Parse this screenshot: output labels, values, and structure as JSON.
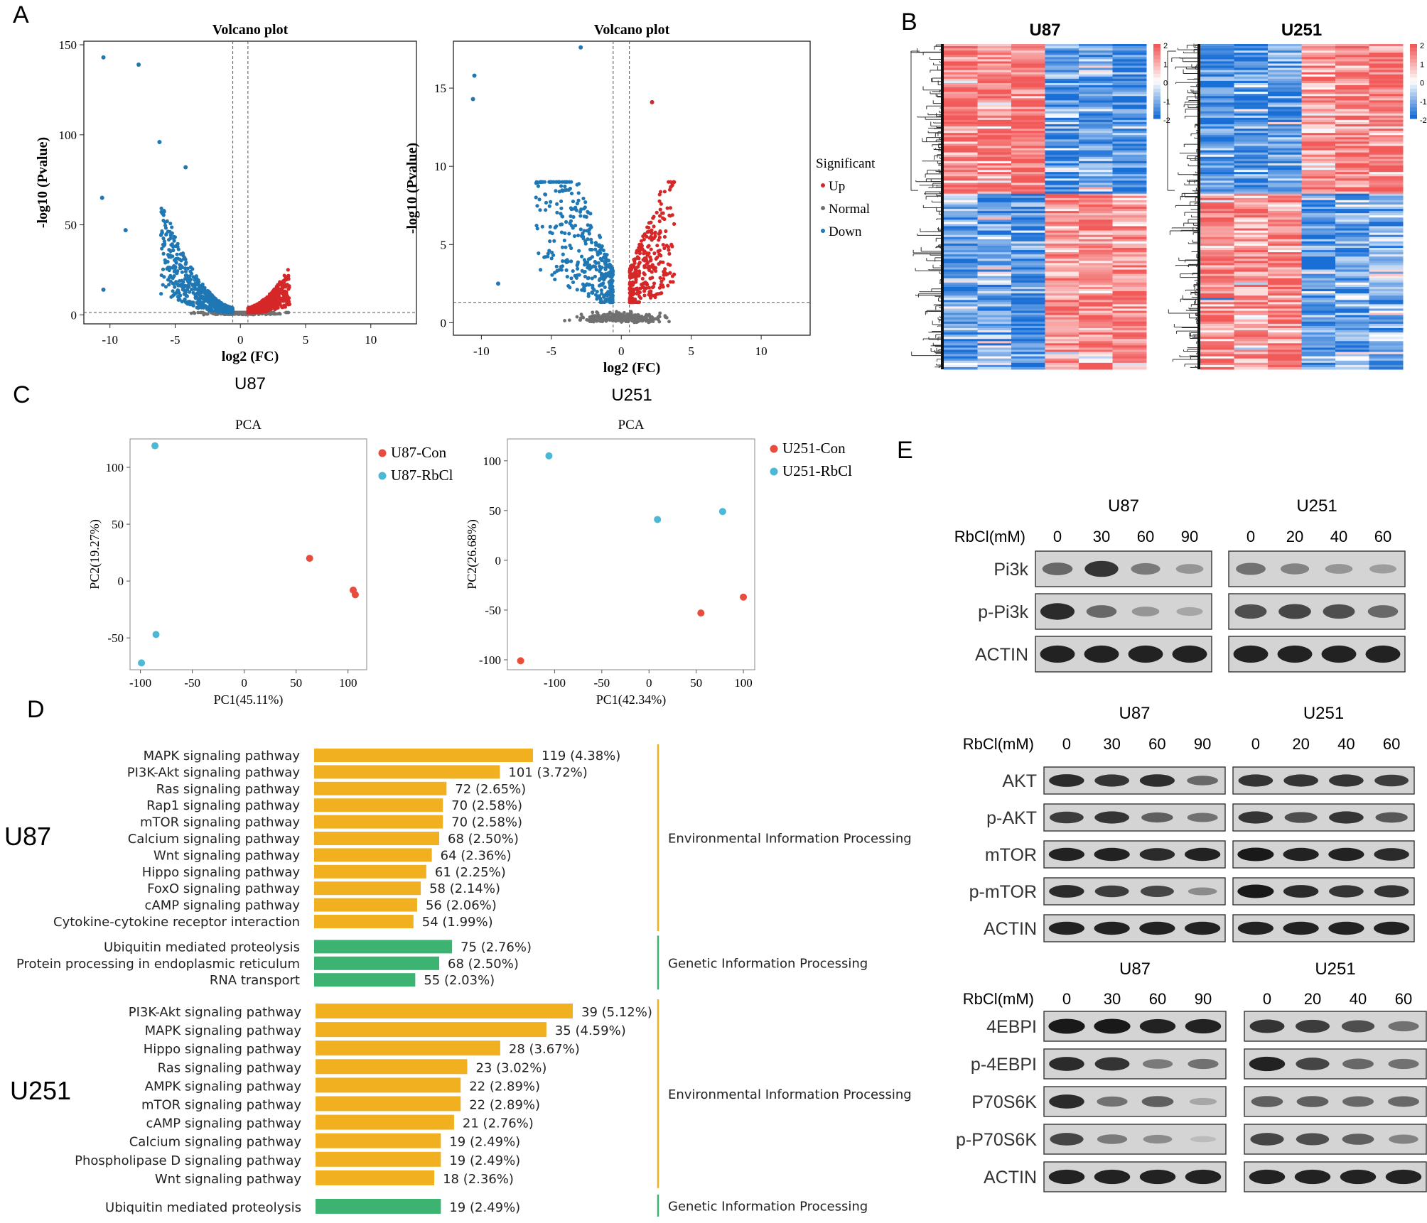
{
  "figure": {
    "panel_labels": [
      "A",
      "B",
      "C",
      "D",
      "E"
    ],
    "colors": {
      "up": "#d62728",
      "down": "#1f77b4",
      "normal": "#707070",
      "con": "#e74c3c",
      "rbcl": "#4bb8d6",
      "env": "#f0b020",
      "gen": "#3cb371",
      "heat_hi": "#f25a5a",
      "heat_lo": "#1a6fd6"
    }
  },
  "chart_data": [
    {
      "type": "scatter",
      "id": "volcano-u87",
      "title": "Volcano plot",
      "xlabel": "log2 (FC)",
      "ylabel": "-log10 (Pvalue)",
      "caption": "U87",
      "xlim": [
        -12,
        13.5
      ],
      "ylim": [
        -5,
        152
      ],
      "xticks": [
        -10,
        -5,
        0,
        5,
        10
      ],
      "yticks": [
        0,
        50,
        100,
        150
      ],
      "thresholds": {
        "x": [
          -0.58,
          0.58
        ],
        "y": 1.3
      },
      "highlight_points": [
        [
          -10.5,
          143
        ],
        [
          -7.8,
          139
        ],
        [
          -6.2,
          96
        ],
        [
          -4.2,
          82
        ],
        [
          -10.6,
          65
        ],
        [
          -8.8,
          47
        ],
        [
          -4.6,
          26
        ],
        [
          -10.5,
          14
        ]
      ],
      "legend": {
        "title": "Significant",
        "entries": [
          "Up",
          "Normal",
          "Down"
        ],
        "placement": "right"
      }
    },
    {
      "type": "scatter",
      "id": "volcano-u251",
      "title": "Volcano plot",
      "xlabel": "log2 (FC)",
      "ylabel": "-log10 (Pvalue)",
      "caption": "U251",
      "xlim": [
        -12,
        13.5
      ],
      "ylim": [
        -0.8,
        18
      ],
      "xticks": [
        -10,
        -5,
        0,
        5,
        10
      ],
      "yticks": [
        0,
        5,
        10,
        15
      ],
      "thresholds": {
        "x": [
          -0.58,
          0.58
        ],
        "y": 1.3
      },
      "highlight_points": [
        [
          -10.5,
          15.8
        ],
        [
          -10.6,
          14.3
        ],
        [
          -2.9,
          17.6
        ],
        [
          -8.8,
          2.5
        ],
        [
          2.2,
          14.1
        ],
        [
          3.1,
          3.2
        ]
      ]
    },
    {
      "type": "heatmap",
      "id": "heatmap-u87",
      "title": "U87",
      "colorbar": {
        "ticks": [
          "2",
          "1",
          "0",
          "-1",
          "-2"
        ],
        "range": [
          -2,
          2
        ]
      },
      "column_pattern": [
        [
          1.6,
          1.5,
          1.8,
          -1.4,
          -1.2,
          -1.4
        ],
        [
          -1.3,
          -1.1,
          -1.6,
          1.2,
          1.5,
          1.3
        ]
      ]
    },
    {
      "type": "heatmap",
      "id": "heatmap-u251",
      "title": "U251",
      "colorbar": {
        "ticks": [
          "2",
          "1",
          "0",
          "-1",
          "-2"
        ],
        "range": [
          -2,
          2
        ]
      },
      "column_pattern": [
        [
          -1.5,
          -1.7,
          -1.3,
          1.2,
          1.5,
          1.6
        ],
        [
          1.5,
          1.2,
          1.4,
          -1.5,
          -1.2,
          -1.0
        ]
      ]
    },
    {
      "type": "scatter",
      "id": "pca-u87",
      "title": "PCA",
      "xlabel": "PC1(45.11%)",
      "ylabel": "PC2(19.27%)",
      "xlim": [
        -110,
        118
      ],
      "ylim": [
        -78,
        125
      ],
      "xticks": [
        -100,
        -50,
        0,
        50,
        100
      ],
      "yticks": [
        -50,
        0,
        50,
        100
      ],
      "series": [
        {
          "name": "U87-Con",
          "points": [
            [
              63,
              20
            ],
            [
              105,
              -8
            ],
            [
              107,
              -12
            ]
          ]
        },
        {
          "name": "U87-RbCl",
          "points": [
            [
              -86,
              119
            ],
            [
              -85,
              -47
            ],
            [
              -99,
              -72
            ]
          ]
        }
      ]
    },
    {
      "type": "scatter",
      "id": "pca-u251",
      "title": "PCA",
      "xlabel": "PC1(42.34%)",
      "ylabel": "PC2(26.68%)",
      "xlim": [
        -150,
        112
      ],
      "ylim": [
        -110,
        122
      ],
      "xticks": [
        -100,
        -50,
        0,
        50,
        100
      ],
      "yticks": [
        -100,
        -50,
        0,
        50,
        100
      ],
      "series": [
        {
          "name": "U251-Con",
          "points": [
            [
              -136,
              -101
            ],
            [
              55,
              -53
            ],
            [
              100,
              -37
            ]
          ]
        },
        {
          "name": "U251-RbCl",
          "points": [
            [
              -106,
              105
            ],
            [
              9,
              41
            ],
            [
              78,
              49
            ]
          ]
        }
      ]
    },
    {
      "type": "bar",
      "id": "kegg-u87",
      "group_label": "U87",
      "max_value": 119,
      "categories": [
        {
          "label": "MAPK signaling pathway",
          "value": 119,
          "text": "119 (4.38%)",
          "cls": "env"
        },
        {
          "label": "PI3K-Akt signaling pathway",
          "value": 101,
          "text": "101 (3.72%)",
          "cls": "env"
        },
        {
          "label": "Ras signaling pathway",
          "value": 72,
          "text": "72 (2.65%)",
          "cls": "env"
        },
        {
          "label": "Rap1 signaling pathway",
          "value": 70,
          "text": "70 (2.58%)",
          "cls": "env"
        },
        {
          "label": "mTOR signaling pathway",
          "value": 70,
          "text": "70 (2.58%)",
          "cls": "env"
        },
        {
          "label": "Calcium signaling pathway",
          "value": 68,
          "text": "68 (2.50%)",
          "cls": "env"
        },
        {
          "label": "Wnt signaling pathway",
          "value": 64,
          "text": "64 (2.36%)",
          "cls": "env"
        },
        {
          "label": "Hippo signaling pathway",
          "value": 61,
          "text": "61 (2.25%)",
          "cls": "env"
        },
        {
          "label": "FoxO signaling pathway",
          "value": 58,
          "text": "58 (2.14%)",
          "cls": "env"
        },
        {
          "label": "cAMP signaling pathway",
          "value": 56,
          "text": "56 (2.06%)",
          "cls": "env"
        },
        {
          "label": "Cytokine-cytokine receptor interaction",
          "value": 54,
          "text": "54 (1.99%)",
          "cls": "env"
        },
        {
          "label": "Ubiquitin mediated proteolysis",
          "value": 75,
          "text": "75 (2.76%)",
          "cls": "gen"
        },
        {
          "label": "Protein processing in endoplasmic reticulum",
          "value": 68,
          "text": "68 (2.50%)",
          "cls": "gen"
        },
        {
          "label": "RNA transport",
          "value": 55,
          "text": "55 (2.03%)",
          "cls": "gen"
        }
      ],
      "group_names": {
        "env": "Environmental Information Processing",
        "gen": "Genetic Information Processing"
      }
    },
    {
      "type": "bar",
      "id": "kegg-u251",
      "group_label": "U251",
      "max_value": 39,
      "categories": [
        {
          "label": "PI3K-Akt signaling pathway",
          "value": 39,
          "text": "39 (5.12%)",
          "cls": "env"
        },
        {
          "label": "MAPK signaling pathway",
          "value": 35,
          "text": "35 (4.59%)",
          "cls": "env"
        },
        {
          "label": "Hippo signaling pathway",
          "value": 28,
          "text": "28 (3.67%)",
          "cls": "env"
        },
        {
          "label": "Ras signaling pathway",
          "value": 23,
          "text": "23 (3.02%)",
          "cls": "env"
        },
        {
          "label": "AMPK signaling pathway",
          "value": 22,
          "text": "22 (2.89%)",
          "cls": "env"
        },
        {
          "label": "mTOR signaling pathway",
          "value": 22,
          "text": "22 (2.89%)",
          "cls": "env"
        },
        {
          "label": "cAMP signaling pathway",
          "value": 21,
          "text": "21 (2.76%)",
          "cls": "env"
        },
        {
          "label": "Calcium signaling pathway",
          "value": 19,
          "text": "19 (2.49%)",
          "cls": "env"
        },
        {
          "label": "Phospholipase D signaling pathway",
          "value": 19,
          "text": "19 (2.49%)",
          "cls": "env"
        },
        {
          "label": "Wnt signaling pathway",
          "value": 18,
          "text": "18 (2.36%)",
          "cls": "env"
        },
        {
          "label": "Ubiquitin mediated proteolysis",
          "value": 19,
          "text": "19 (2.49%)",
          "cls": "gen"
        }
      ],
      "group_names": {
        "env": "Environmental Information Processing",
        "gen": "Genetic Information Processing"
      }
    },
    {
      "type": "table",
      "id": "western-blots",
      "treatment_label": "RbCl(mM)",
      "lanes": {
        "U87": [
          "0",
          "30",
          "60",
          "90"
        ],
        "U251": [
          "0",
          "20",
          "40",
          "60"
        ]
      },
      "blocks": [
        {
          "rows": [
            {
              "protein": "Pi3k",
              "U87": [
                0.55,
                0.85,
                0.45,
                0.3
              ],
              "U251": [
                0.5,
                0.4,
                0.3,
                0.25
              ]
            },
            {
              "protein": "p-Pi3k",
              "U87": [
                0.9,
                0.55,
                0.3,
                0.2
              ],
              "U251": [
                0.7,
                0.75,
                0.7,
                0.55
              ]
            },
            {
              "protein": "ACTIN",
              "U87": [
                0.95,
                0.95,
                0.95,
                0.95
              ],
              "U251": [
                0.95,
                0.95,
                0.95,
                0.95
              ]
            }
          ]
        },
        {
          "rows": [
            {
              "protein": "AKT",
              "U87": [
                0.9,
                0.85,
                0.88,
                0.55
              ],
              "U251": [
                0.85,
                0.85,
                0.85,
                0.8
              ]
            },
            {
              "protein": "p-AKT",
              "U87": [
                0.8,
                0.85,
                0.6,
                0.5
              ],
              "U251": [
                0.85,
                0.7,
                0.85,
                0.65
              ]
            },
            {
              "protein": "mTOR",
              "U87": [
                0.95,
                0.95,
                0.9,
                0.95
              ],
              "U251": [
                1.0,
                0.95,
                0.95,
                0.9
              ]
            },
            {
              "protein": "p-mTOR",
              "U87": [
                0.9,
                0.8,
                0.75,
                0.35
              ],
              "U251": [
                1.0,
                0.9,
                0.85,
                0.85
              ]
            },
            {
              "protein": "ACTIN",
              "U87": [
                0.95,
                0.95,
                0.95,
                0.95
              ],
              "U251": [
                0.95,
                0.95,
                0.95,
                0.95
              ]
            }
          ]
        },
        {
          "rows": [
            {
              "protein": "4EBPI",
              "U87": [
                1.0,
                1.0,
                0.95,
                0.95
              ],
              "U251": [
                0.85,
                0.8,
                0.7,
                0.5
              ]
            },
            {
              "protein": "p-4EBPI",
              "U87": [
                0.9,
                0.85,
                0.45,
                0.5
              ],
              "U251": [
                0.95,
                0.75,
                0.55,
                0.5
              ]
            },
            {
              "protein": "P70S6K",
              "U87": [
                0.9,
                0.5,
                0.6,
                0.2
              ],
              "U251": [
                0.6,
                0.6,
                0.55,
                0.55
              ]
            },
            {
              "protein": "p-P70S6K",
              "U87": [
                0.75,
                0.45,
                0.35,
                0.08
              ],
              "U251": [
                0.75,
                0.7,
                0.6,
                0.4
              ]
            },
            {
              "protein": "ACTIN",
              "U87": [
                0.95,
                0.95,
                0.95,
                0.95
              ],
              "U251": [
                0.95,
                0.95,
                0.95,
                0.95
              ]
            }
          ]
        }
      ]
    }
  ]
}
